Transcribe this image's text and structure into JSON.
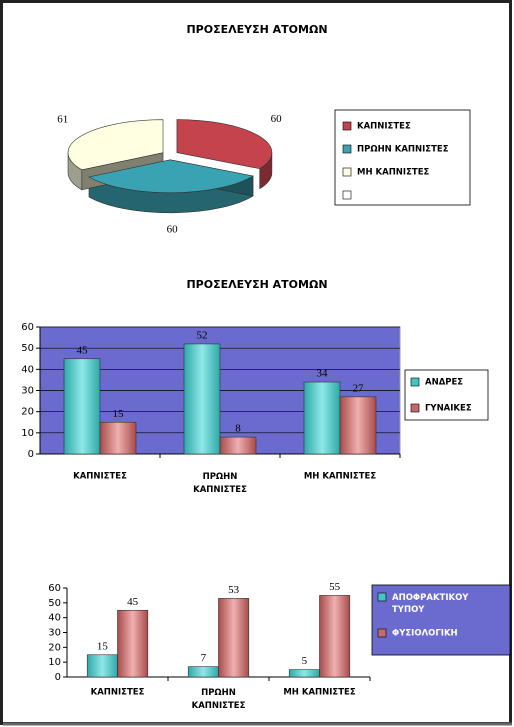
{
  "chart_data": [
    {
      "type": "pie",
      "title": "ΠΡΟΣΕΛΕΥΣΗ ΑΤΟΜΩΝ",
      "categories": [
        "ΚΑΠΝΙΣΤΕΣ",
        "ΠΡΩΗΝ ΚΑΠΝΙΣΤΕΣ",
        "ΜΗ ΚΑΠΝΙΣΤΕΣ"
      ],
      "values": [
        60,
        60,
        61
      ],
      "colors": [
        "#c4434d",
        "#3aa3b3",
        "#ffffe2"
      ],
      "legend": "right"
    },
    {
      "type": "bar",
      "title": "ΠΡΟΣΕΛΕΥΣΗ ΑΤΟΜΩΝ",
      "categories": [
        "ΚΑΠΝΙΣΤΕΣ",
        "ΠΡΩΗΝ ΚΑΠΝΙΣΤΕΣ",
        "ΜΗ ΚΑΠΝΙΣΤΕΣ"
      ],
      "series": [
        {
          "name": "ΑΝΔΡΕΣ",
          "color": "#45c4c4",
          "values": [
            45,
            52,
            34
          ]
        },
        {
          "name": "ΓΥΝΑΙΚΕΣ",
          "color": "#c46a6a",
          "values": [
            15,
            8,
            27
          ]
        }
      ],
      "ylim": [
        0,
        60
      ],
      "yticks": [
        0,
        10,
        20,
        30,
        40,
        50,
        60
      ],
      "grid": true,
      "plot_background": "#6b6bcf",
      "legend": "right"
    },
    {
      "type": "bar",
      "categories": [
        "ΚΑΠΝΙΣΤΕΣ",
        "ΠΡΩΗΝ ΚΑΠΝΙΣΤΕΣ",
        "ΜΗ ΚΑΠΝΙΣΤΕΣ"
      ],
      "series": [
        {
          "name": "ΑΠΟΦΡΑΚΤΙΚΟΥ ΤΥΠΟΥ",
          "color": "#45c4c4",
          "values": [
            15,
            7,
            5
          ]
        },
        {
          "name": "ΦΥΣΙΟΛΟΓΙΚΗ",
          "color": "#c46a6a",
          "values": [
            45,
            53,
            55
          ]
        }
      ],
      "ylim": [
        0,
        60
      ],
      "yticks": [
        0,
        10,
        20,
        30,
        40,
        50,
        60
      ],
      "grid": false,
      "plot_background": "#ffffff",
      "legend": "right"
    }
  ]
}
